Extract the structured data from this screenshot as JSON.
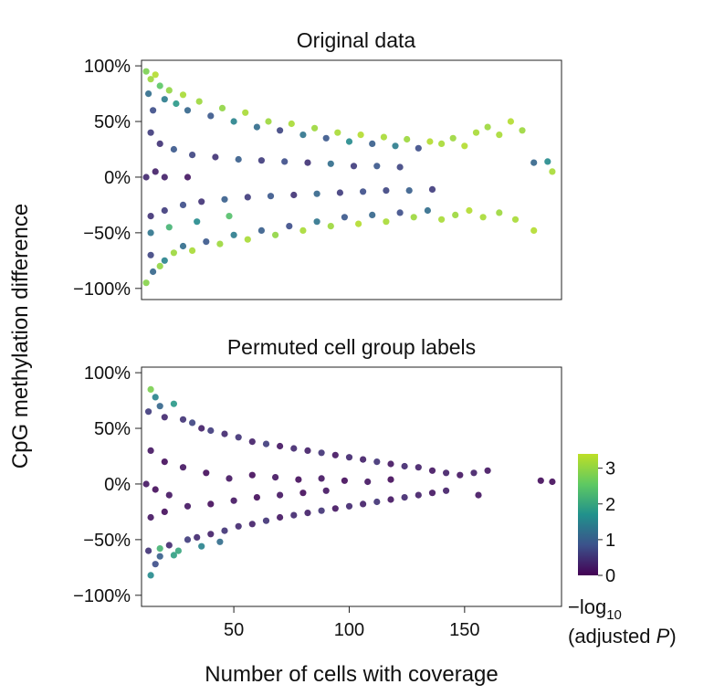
{
  "chart_data": {
    "type": "scatter",
    "shared_ylabel": "CpG methylation difference",
    "shared_xlabel": "Number of cells with coverage",
    "colorbar": {
      "title_line1": "−log",
      "title_sub": "10",
      "title_line2": "(adjusted ",
      "title_italic": "P",
      "title_close": ")",
      "range": [
        0,
        3.4
      ],
      "ticks": [
        {
          "value": 0,
          "label": "0"
        },
        {
          "value": 1,
          "label": "1"
        },
        {
          "value": 2,
          "label": "2"
        },
        {
          "value": 3,
          "label": "3"
        }
      ],
      "colormap": [
        "#440154",
        "#3b528b",
        "#21918c",
        "#5ec962",
        "#bddf26"
      ]
    },
    "x_ticks": [
      {
        "value": 50,
        "label": "50"
      },
      {
        "value": 100,
        "label": "100"
      },
      {
        "value": 150,
        "label": "150"
      }
    ],
    "xlim": [
      10,
      192
    ],
    "panels": [
      {
        "title": "Original data",
        "ylim": [
          -1.1,
          1.05
        ],
        "y_ticks": [
          {
            "value": 1,
            "label": "100%"
          },
          {
            "value": 0.5,
            "label": "50%"
          },
          {
            "value": 0,
            "label": "0%"
          },
          {
            "value": -0.5,
            "label": "−50%"
          },
          {
            "value": -1,
            "label": "−100%"
          }
        ],
        "points": [
          [
            12,
            0.95,
            2.8
          ],
          [
            14,
            0.88,
            3.1
          ],
          [
            16,
            0.92,
            3.3
          ],
          [
            13,
            0.75,
            1.2
          ],
          [
            18,
            0.82,
            2.5
          ],
          [
            20,
            0.7,
            1.4
          ],
          [
            15,
            0.6,
            0.8
          ],
          [
            22,
            0.78,
            3.0
          ],
          [
            25,
            0.66,
            1.8
          ],
          [
            28,
            0.74,
            3.2
          ],
          [
            30,
            0.6,
            1.1
          ],
          [
            35,
            0.68,
            3.1
          ],
          [
            40,
            0.55,
            0.9
          ],
          [
            45,
            0.62,
            3.0
          ],
          [
            50,
            0.5,
            1.5
          ],
          [
            55,
            0.58,
            3.2
          ],
          [
            60,
            0.45,
            1.2
          ],
          [
            65,
            0.5,
            3.1
          ],
          [
            70,
            0.42,
            0.7
          ],
          [
            75,
            0.48,
            3.2
          ],
          [
            80,
            0.38,
            1.3
          ],
          [
            85,
            0.44,
            3.1
          ],
          [
            90,
            0.35,
            0.9
          ],
          [
            95,
            0.4,
            3.2
          ],
          [
            100,
            0.32,
            1.6
          ],
          [
            105,
            0.38,
            3.3
          ],
          [
            110,
            0.3,
            1.0
          ],
          [
            115,
            0.36,
            3.2
          ],
          [
            120,
            0.28,
            1.4
          ],
          [
            125,
            0.34,
            3.1
          ],
          [
            130,
            0.26,
            0.8
          ],
          [
            135,
            0.32,
            3.3
          ],
          [
            140,
            0.3,
            3.2
          ],
          [
            145,
            0.35,
            3.1
          ],
          [
            150,
            0.28,
            3.3
          ],
          [
            155,
            0.4,
            3.2
          ],
          [
            160,
            0.45,
            3.1
          ],
          [
            165,
            0.38,
            3.2
          ],
          [
            170,
            0.5,
            3.3
          ],
          [
            175,
            0.42,
            3.1
          ],
          [
            180,
            0.13,
            1.1
          ],
          [
            186,
            0.14,
            1.6
          ],
          [
            188,
            0.05,
            3.2
          ],
          [
            14,
            0.4,
            0.6
          ],
          [
            18,
            0.3,
            0.5
          ],
          [
            24,
            0.25,
            0.9
          ],
          [
            32,
            0.2,
            0.7
          ],
          [
            42,
            0.18,
            0.5
          ],
          [
            52,
            0.16,
            1.0
          ],
          [
            62,
            0.15,
            0.6
          ],
          [
            72,
            0.14,
            0.8
          ],
          [
            82,
            0.13,
            0.5
          ],
          [
            92,
            0.12,
            1.2
          ],
          [
            102,
            0.1,
            0.6
          ],
          [
            112,
            0.1,
            0.9
          ],
          [
            122,
            0.09,
            0.7
          ],
          [
            12,
            0.0,
            0.4
          ],
          [
            20,
            0.0,
            0.3
          ],
          [
            30,
            0.0,
            0.2
          ],
          [
            16,
            0.05,
            0.3
          ],
          [
            12,
            -0.95,
            2.9
          ],
          [
            15,
            -0.85,
            1.1
          ],
          [
            18,
            -0.8,
            3.0
          ],
          [
            14,
            -0.7,
            0.7
          ],
          [
            20,
            -0.75,
            1.5
          ],
          [
            24,
            -0.68,
            3.1
          ],
          [
            28,
            -0.62,
            1.2
          ],
          [
            32,
            -0.66,
            3.2
          ],
          [
            38,
            -0.58,
            0.9
          ],
          [
            44,
            -0.6,
            3.1
          ],
          [
            50,
            -0.52,
            1.4
          ],
          [
            56,
            -0.56,
            3.2
          ],
          [
            62,
            -0.48,
            1.0
          ],
          [
            68,
            -0.52,
            3.0
          ],
          [
            74,
            -0.44,
            0.8
          ],
          [
            80,
            -0.48,
            3.2
          ],
          [
            86,
            -0.4,
            1.3
          ],
          [
            92,
            -0.44,
            3.1
          ],
          [
            98,
            -0.36,
            0.9
          ],
          [
            104,
            -0.42,
            3.3
          ],
          [
            110,
            -0.34,
            1.1
          ],
          [
            116,
            -0.4,
            3.2
          ],
          [
            122,
            -0.32,
            0.8
          ],
          [
            128,
            -0.36,
            3.1
          ],
          [
            134,
            -0.3,
            1.2
          ],
          [
            140,
            -0.38,
            3.2
          ],
          [
            146,
            -0.34,
            3.1
          ],
          [
            152,
            -0.3,
            3.3
          ],
          [
            158,
            -0.36,
            3.2
          ],
          [
            165,
            -0.32,
            3.1
          ],
          [
            172,
            -0.38,
            3.2
          ],
          [
            180,
            -0.48,
            3.3
          ],
          [
            14,
            -0.35,
            0.5
          ],
          [
            20,
            -0.3,
            0.6
          ],
          [
            28,
            -0.25,
            0.8
          ],
          [
            36,
            -0.22,
            0.5
          ],
          [
            46,
            -0.2,
            1.0
          ],
          [
            56,
            -0.18,
            0.6
          ],
          [
            66,
            -0.17,
            0.9
          ],
          [
            76,
            -0.16,
            0.5
          ],
          [
            86,
            -0.15,
            1.1
          ],
          [
            96,
            -0.14,
            0.6
          ],
          [
            106,
            -0.13,
            0.8
          ],
          [
            116,
            -0.12,
            0.7
          ],
          [
            126,
            -0.12,
            1.0
          ],
          [
            136,
            -0.11,
            0.6
          ],
          [
            14,
            -0.5,
            1.3
          ],
          [
            22,
            -0.45,
            2.2
          ],
          [
            34,
            -0.4,
            1.6
          ],
          [
            48,
            -0.35,
            2.4
          ]
        ]
      },
      {
        "title": "Permuted cell group labels",
        "ylim": [
          -1.1,
          1.05
        ],
        "y_ticks": [
          {
            "value": 1,
            "label": "100%"
          },
          {
            "value": 0.5,
            "label": "50%"
          },
          {
            "value": 0,
            "label": "0%"
          },
          {
            "value": -0.5,
            "label": "−50%"
          },
          {
            "value": -1,
            "label": "−100%"
          }
        ],
        "points": [
          [
            14,
            0.85,
            2.8
          ],
          [
            16,
            0.78,
            1.5
          ],
          [
            13,
            0.65,
            0.6
          ],
          [
            18,
            0.7,
            1.1
          ],
          [
            20,
            0.6,
            0.4
          ],
          [
            24,
            0.72,
            1.8
          ],
          [
            28,
            0.58,
            0.5
          ],
          [
            32,
            0.55,
            0.7
          ],
          [
            36,
            0.5,
            0.3
          ],
          [
            40,
            0.48,
            0.6
          ],
          [
            46,
            0.45,
            0.4
          ],
          [
            52,
            0.42,
            0.5
          ],
          [
            58,
            0.38,
            0.3
          ],
          [
            64,
            0.36,
            0.6
          ],
          [
            70,
            0.34,
            0.2
          ],
          [
            76,
            0.32,
            0.4
          ],
          [
            82,
            0.3,
            0.3
          ],
          [
            88,
            0.28,
            0.5
          ],
          [
            94,
            0.26,
            0.2
          ],
          [
            100,
            0.24,
            0.4
          ],
          [
            106,
            0.22,
            0.3
          ],
          [
            112,
            0.2,
            0.5
          ],
          [
            118,
            0.18,
            0.2
          ],
          [
            124,
            0.16,
            0.4
          ],
          [
            130,
            0.15,
            0.3
          ],
          [
            136,
            0.12,
            0.2
          ],
          [
            142,
            0.1,
            0.3
          ],
          [
            148,
            0.08,
            0.2
          ],
          [
            154,
            0.1,
            0.3
          ],
          [
            160,
            0.12,
            0.2
          ],
          [
            183,
            0.03,
            0.1
          ],
          [
            188,
            0.02,
            0.1
          ],
          [
            156,
            -0.1,
            0.2
          ],
          [
            14,
            0.3,
            0.2
          ],
          [
            20,
            0.2,
            0.1
          ],
          [
            28,
            0.15,
            0.2
          ],
          [
            38,
            0.1,
            0.1
          ],
          [
            48,
            0.05,
            0.2
          ],
          [
            58,
            0.08,
            0.1
          ],
          [
            68,
            0.06,
            0.2
          ],
          [
            78,
            0.04,
            0.1
          ],
          [
            88,
            0.05,
            0.2
          ],
          [
            98,
            0.03,
            0.1
          ],
          [
            108,
            0.02,
            0.2
          ],
          [
            118,
            0.04,
            0.1
          ],
          [
            12,
            0.0,
            0.2
          ],
          [
            16,
            -0.05,
            0.1
          ],
          [
            22,
            -0.1,
            0.2
          ],
          [
            14,
            -0.82,
            1.6
          ],
          [
            16,
            -0.72,
            0.8
          ],
          [
            13,
            -0.6,
            0.5
          ],
          [
            18,
            -0.65,
            1.0
          ],
          [
            22,
            -0.55,
            0.4
          ],
          [
            26,
            -0.6,
            2.0
          ],
          [
            30,
            -0.5,
            0.6
          ],
          [
            34,
            -0.48,
            0.4
          ],
          [
            40,
            -0.45,
            0.3
          ],
          [
            46,
            -0.42,
            0.5
          ],
          [
            52,
            -0.38,
            0.4
          ],
          [
            58,
            -0.36,
            0.3
          ],
          [
            64,
            -0.33,
            0.5
          ],
          [
            70,
            -0.3,
            0.2
          ],
          [
            76,
            -0.28,
            0.4
          ],
          [
            82,
            -0.26,
            0.3
          ],
          [
            88,
            -0.24,
            0.5
          ],
          [
            94,
            -0.22,
            0.2
          ],
          [
            100,
            -0.2,
            0.4
          ],
          [
            106,
            -0.18,
            0.3
          ],
          [
            112,
            -0.16,
            0.5
          ],
          [
            118,
            -0.14,
            0.2
          ],
          [
            124,
            -0.12,
            0.4
          ],
          [
            130,
            -0.1,
            0.3
          ],
          [
            136,
            -0.08,
            0.2
          ],
          [
            142,
            -0.06,
            0.3
          ],
          [
            14,
            -0.3,
            0.2
          ],
          [
            20,
            -0.25,
            0.1
          ],
          [
            30,
            -0.2,
            0.2
          ],
          [
            40,
            -0.18,
            0.1
          ],
          [
            50,
            -0.15,
            0.2
          ],
          [
            60,
            -0.12,
            0.1
          ],
          [
            70,
            -0.1,
            0.2
          ],
          [
            80,
            -0.08,
            0.1
          ],
          [
            90,
            -0.06,
            0.2
          ],
          [
            18,
            -0.58,
            2.2
          ],
          [
            24,
            -0.64,
            1.9
          ],
          [
            36,
            -0.56,
            1.5
          ],
          [
            44,
            -0.52,
            1.2
          ]
        ]
      }
    ]
  }
}
